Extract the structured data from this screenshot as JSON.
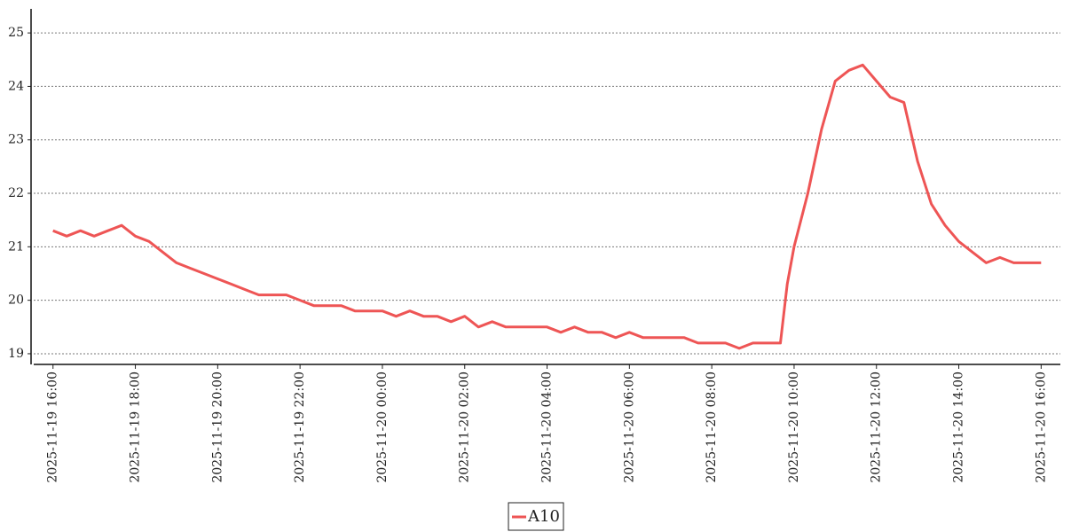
{
  "chart_data": {
    "type": "line",
    "x": [
      "2025-11-19 16:00",
      "2025-11-19 16:20",
      "2025-11-19 16:40",
      "2025-11-19 17:00",
      "2025-11-19 17:20",
      "2025-11-19 17:40",
      "2025-11-19 18:00",
      "2025-11-19 18:20",
      "2025-11-19 18:40",
      "2025-11-19 19:00",
      "2025-11-19 19:20",
      "2025-11-19 19:40",
      "2025-11-19 20:00",
      "2025-11-19 20:20",
      "2025-11-19 20:40",
      "2025-11-19 21:00",
      "2025-11-19 21:20",
      "2025-11-19 21:40",
      "2025-11-19 22:00",
      "2025-11-19 22:20",
      "2025-11-19 22:40",
      "2025-11-19 23:00",
      "2025-11-19 23:20",
      "2025-11-19 23:40",
      "2025-11-20 00:00",
      "2025-11-20 00:20",
      "2025-11-20 00:40",
      "2025-11-20 01:00",
      "2025-11-20 01:20",
      "2025-11-20 01:40",
      "2025-11-20 02:00",
      "2025-11-20 02:20",
      "2025-11-20 02:40",
      "2025-11-20 03:00",
      "2025-11-20 03:20",
      "2025-11-20 03:40",
      "2025-11-20 04:00",
      "2025-11-20 04:20",
      "2025-11-20 04:40",
      "2025-11-20 05:00",
      "2025-11-20 05:20",
      "2025-11-20 05:40",
      "2025-11-20 06:00",
      "2025-11-20 06:20",
      "2025-11-20 06:40",
      "2025-11-20 07:00",
      "2025-11-20 07:20",
      "2025-11-20 07:40",
      "2025-11-20 08:00",
      "2025-11-20 08:20",
      "2025-11-20 08:40",
      "2025-11-20 09:00",
      "2025-11-20 09:20",
      "2025-11-20 09:40",
      "2025-11-20 09:50",
      "2025-11-20 10:00",
      "2025-11-20 10:20",
      "2025-11-20 10:40",
      "2025-11-20 11:00",
      "2025-11-20 11:20",
      "2025-11-20 11:40",
      "2025-11-20 12:00",
      "2025-11-20 12:20",
      "2025-11-20 12:40",
      "2025-11-20 13:00",
      "2025-11-20 13:20",
      "2025-11-20 13:40",
      "2025-11-20 14:00",
      "2025-11-20 14:20",
      "2025-11-20 14:40",
      "2025-11-20 15:00",
      "2025-11-20 15:20",
      "2025-11-20 15:40",
      "2025-11-20 16:00"
    ],
    "series": [
      {
        "name": "A10",
        "color": "#ee5555",
        "values": [
          21.3,
          21.2,
          21.3,
          21.2,
          21.3,
          21.4,
          21.2,
          21.1,
          20.9,
          20.7,
          20.6,
          20.5,
          20.4,
          20.3,
          20.2,
          20.1,
          20.1,
          20.1,
          20.0,
          19.9,
          19.9,
          19.9,
          19.8,
          19.8,
          19.8,
          19.7,
          19.8,
          19.7,
          19.7,
          19.6,
          19.7,
          19.5,
          19.6,
          19.5,
          19.5,
          19.5,
          19.5,
          19.4,
          19.5,
          19.4,
          19.4,
          19.3,
          19.4,
          19.3,
          19.3,
          19.3,
          19.3,
          19.2,
          19.2,
          19.2,
          19.1,
          19.2,
          19.2,
          19.2,
          20.3,
          21.0,
          22.0,
          23.2,
          24.1,
          24.3,
          24.4,
          24.1,
          23.8,
          23.7,
          22.6,
          21.8,
          21.4,
          21.1,
          20.9,
          20.7,
          20.8,
          20.7,
          20.7,
          20.7
        ]
      }
    ],
    "xlim": [
      "2025-11-19 15:28",
      "2025-11-20 16:28"
    ],
    "xticks": [
      "2025-11-19 16:00",
      "2025-11-19 18:00",
      "2025-11-19 20:00",
      "2025-11-19 22:00",
      "2025-11-20 00:00",
      "2025-11-20 02:00",
      "2025-11-20 04:00",
      "2025-11-20 06:00",
      "2025-11-20 08:00",
      "2025-11-20 10:00",
      "2025-11-20 12:00",
      "2025-11-20 14:00",
      "2025-11-20 16:00"
    ],
    "ylim": [
      18.8,
      25.45
    ],
    "yticks": [
      19,
      20,
      21,
      22,
      23,
      24,
      25
    ],
    "grid": true,
    "legend": "bottom"
  }
}
